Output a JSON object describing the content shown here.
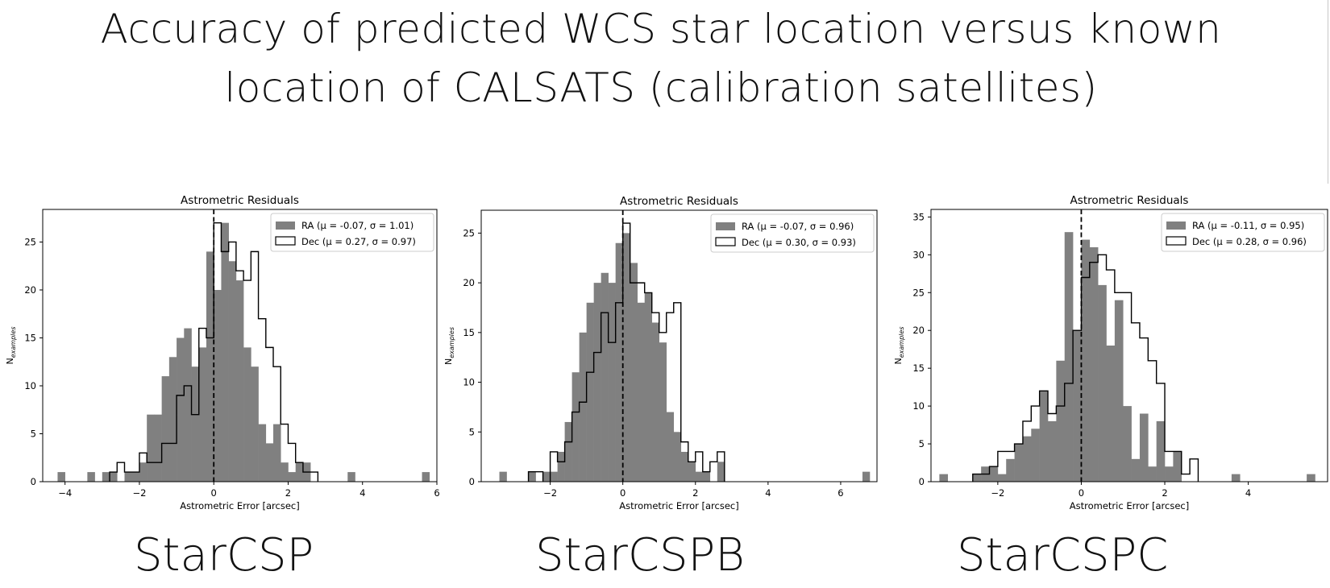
{
  "figure_title": {
    "line1": "Accuracy of predicted WCS star location versus known",
    "line2": "location of CALSATS (calibration satellites)"
  },
  "panel_labels": [
    "StarCSP",
    "StarCSPB",
    "StarCSPC"
  ],
  "colors": {
    "ra_fill": "#808080",
    "dec_edge": "#000000",
    "zero_line": "#000000"
  },
  "chart_data": [
    {
      "type": "histogram",
      "title": "Astrometric Residuals",
      "xlabel": "Astrometric Error [arcsec]",
      "ylabel": "N",
      "ylabel_subscript": "examples",
      "xlim": [
        -4.6,
        6.0
      ],
      "ylim": [
        0,
        28.4
      ],
      "xticks": [
        -4,
        -2,
        0,
        2,
        4,
        6
      ],
      "yticks": [
        0,
        5,
        10,
        15,
        20,
        25
      ],
      "legend_position": "top-right",
      "legend": [
        "RA (μ = -0.07, σ = 1.01)",
        "Dec (μ = 0.27, σ = 0.97)"
      ],
      "vline_x": 0,
      "bin_width": 0.2,
      "series": [
        {
          "name": "RA (μ = -0.07, σ = 1.01)",
          "style": "filled",
          "bins": [
            [
              -4.2,
              1
            ],
            [
              -3.4,
              1
            ],
            [
              -3.0,
              1
            ],
            [
              -2.8,
              1
            ],
            [
              -2.4,
              1
            ],
            [
              -2.2,
              1
            ],
            [
              -2.0,
              2
            ],
            [
              -1.8,
              7
            ],
            [
              -1.6,
              7
            ],
            [
              -1.4,
              11
            ],
            [
              -1.2,
              13
            ],
            [
              -1.0,
              15
            ],
            [
              -0.8,
              16
            ],
            [
              -0.6,
              12
            ],
            [
              -0.4,
              14
            ],
            [
              -0.2,
              24
            ],
            [
              0.0,
              20
            ],
            [
              0.2,
              27
            ],
            [
              0.4,
              23
            ],
            [
              0.6,
              21
            ],
            [
              0.8,
              14
            ],
            [
              1.0,
              12
            ],
            [
              1.2,
              6
            ],
            [
              1.4,
              4
            ],
            [
              1.6,
              6
            ],
            [
              1.8,
              2
            ],
            [
              2.0,
              1
            ],
            [
              2.2,
              2
            ],
            [
              2.4,
              2
            ],
            [
              3.6,
              1
            ],
            [
              5.6,
              1
            ]
          ]
        },
        {
          "name": "Dec (μ = 0.27, σ = 0.97)",
          "style": "step",
          "bins": [
            [
              -2.8,
              1
            ],
            [
              -2.6,
              2
            ],
            [
              -2.4,
              1
            ],
            [
              -2.2,
              1
            ],
            [
              -2.0,
              3
            ],
            [
              -1.8,
              2
            ],
            [
              -1.6,
              2
            ],
            [
              -1.4,
              4
            ],
            [
              -1.2,
              4
            ],
            [
              -1.0,
              9
            ],
            [
              -0.8,
              10
            ],
            [
              -0.6,
              7
            ],
            [
              -0.4,
              16
            ],
            [
              -0.2,
              15
            ],
            [
              0.0,
              27
            ],
            [
              0.2,
              24
            ],
            [
              0.4,
              25
            ],
            [
              0.6,
              22
            ],
            [
              0.8,
              21
            ],
            [
              1.0,
              24
            ],
            [
              1.2,
              17
            ],
            [
              1.4,
              14
            ],
            [
              1.6,
              12
            ],
            [
              1.8,
              6
            ],
            [
              2.0,
              4
            ],
            [
              2.2,
              2
            ],
            [
              2.4,
              1
            ],
            [
              2.6,
              1
            ]
          ]
        }
      ]
    },
    {
      "type": "histogram",
      "title": "Astrometric Residuals",
      "xlabel": "Astrometric Error [arcsec]",
      "ylabel": "N",
      "ylabel_subscript": "examples",
      "xlim": [
        -3.9,
        7.0
      ],
      "ylim": [
        0,
        27.3
      ],
      "xticks": [
        -2,
        0,
        2,
        4,
        6
      ],
      "yticks": [
        0,
        5,
        10,
        15,
        20,
        25
      ],
      "legend_position": "top-right",
      "legend": [
        "RA (μ = -0.07, σ = 0.96)",
        "Dec (μ = 0.30, σ = 0.93)"
      ],
      "vline_x": 0,
      "bin_width": 0.2,
      "series": [
        {
          "name": "RA (μ = -0.07, σ = 0.96)",
          "style": "filled",
          "bins": [
            [
              -3.4,
              1
            ],
            [
              -2.6,
              1
            ],
            [
              -2.2,
              1
            ],
            [
              -2.0,
              1
            ],
            [
              -1.8,
              3
            ],
            [
              -1.6,
              6
            ],
            [
              -1.4,
              11
            ],
            [
              -1.2,
              15
            ],
            [
              -1.0,
              18
            ],
            [
              -0.8,
              20
            ],
            [
              -0.6,
              21
            ],
            [
              -0.4,
              20
            ],
            [
              -0.2,
              24
            ],
            [
              0.0,
              25
            ],
            [
              0.2,
              22
            ],
            [
              0.4,
              18
            ],
            [
              0.6,
              19
            ],
            [
              0.8,
              16
            ],
            [
              1.0,
              14
            ],
            [
              1.2,
              7
            ],
            [
              1.4,
              5
            ],
            [
              1.6,
              3
            ],
            [
              1.8,
              2
            ],
            [
              2.0,
              1
            ],
            [
              2.2,
              1
            ],
            [
              2.6,
              2
            ],
            [
              6.6,
              1
            ]
          ]
        },
        {
          "name": "Dec (μ = 0.30, σ = 0.93)",
          "style": "step",
          "bins": [
            [
              -2.6,
              1
            ],
            [
              -2.4,
              1
            ],
            [
              -2.0,
              3
            ],
            [
              -1.8,
              2
            ],
            [
              -1.6,
              4
            ],
            [
              -1.4,
              7
            ],
            [
              -1.2,
              8
            ],
            [
              -1.0,
              11
            ],
            [
              -0.8,
              13
            ],
            [
              -0.6,
              17
            ],
            [
              -0.4,
              14
            ],
            [
              -0.2,
              18
            ],
            [
              0.0,
              26
            ],
            [
              0.2,
              20
            ],
            [
              0.4,
              20
            ],
            [
              0.6,
              19
            ],
            [
              0.8,
              17
            ],
            [
              1.0,
              15
            ],
            [
              1.2,
              17
            ],
            [
              1.4,
              18
            ],
            [
              1.6,
              4
            ],
            [
              1.8,
              2
            ],
            [
              2.0,
              3
            ],
            [
              2.2,
              1
            ],
            [
              2.4,
              2
            ],
            [
              2.6,
              3
            ]
          ]
        }
      ]
    },
    {
      "type": "histogram",
      "title": "Astrometric Residuals",
      "xlabel": "Astrometric Error [arcsec]",
      "ylabel": "N",
      "ylabel_subscript": "examples",
      "xlim": [
        -3.6,
        5.9
      ],
      "ylim": [
        0,
        36.0
      ],
      "xticks": [
        -2,
        0,
        2,
        4
      ],
      "yticks": [
        0,
        5,
        10,
        15,
        20,
        25,
        30,
        35
      ],
      "legend_position": "top-right",
      "legend": [
        "RA (μ = -0.11, σ = 0.95)",
        "Dec (μ = 0.28, σ = 0.96)"
      ],
      "vline_x": 0,
      "bin_width": 0.2,
      "series": [
        {
          "name": "RA (μ = -0.11, σ = 0.95)",
          "style": "filled",
          "bins": [
            [
              -3.4,
              1
            ],
            [
              -2.6,
              1
            ],
            [
              -2.4,
              2
            ],
            [
              -2.2,
              2
            ],
            [
              -2.0,
              1
            ],
            [
              -1.8,
              3
            ],
            [
              -1.6,
              5
            ],
            [
              -1.4,
              6
            ],
            [
              -1.2,
              7
            ],
            [
              -1.0,
              12
            ],
            [
              -0.8,
              8
            ],
            [
              -0.6,
              16
            ],
            [
              -0.4,
              33
            ],
            [
              -0.2,
              20
            ],
            [
              0.0,
              32
            ],
            [
              0.2,
              31
            ],
            [
              0.4,
              26
            ],
            [
              0.6,
              18
            ],
            [
              0.8,
              24
            ],
            [
              1.0,
              10
            ],
            [
              1.2,
              3
            ],
            [
              1.4,
              9
            ],
            [
              1.6,
              2
            ],
            [
              1.8,
              8
            ],
            [
              2.0,
              2
            ],
            [
              2.2,
              4
            ],
            [
              3.6,
              1
            ],
            [
              5.4,
              1
            ]
          ]
        },
        {
          "name": "Dec (μ = 0.28, σ = 0.96)",
          "style": "step",
          "bins": [
            [
              -2.6,
              1
            ],
            [
              -2.4,
              1
            ],
            [
              -2.2,
              2
            ],
            [
              -2.0,
              4
            ],
            [
              -1.8,
              4
            ],
            [
              -1.6,
              5
            ],
            [
              -1.4,
              8
            ],
            [
              -1.2,
              10
            ],
            [
              -1.0,
              12
            ],
            [
              -0.8,
              9
            ],
            [
              -0.6,
              10
            ],
            [
              -0.4,
              13
            ],
            [
              -0.2,
              20
            ],
            [
              0.0,
              27
            ],
            [
              0.2,
              29
            ],
            [
              0.4,
              30
            ],
            [
              0.6,
              28
            ],
            [
              0.8,
              25
            ],
            [
              1.0,
              25
            ],
            [
              1.2,
              21
            ],
            [
              1.4,
              19
            ],
            [
              1.6,
              16
            ],
            [
              1.8,
              13
            ],
            [
              2.0,
              4
            ],
            [
              2.2,
              4
            ],
            [
              2.4,
              1
            ],
            [
              2.6,
              3
            ]
          ]
        }
      ]
    }
  ]
}
